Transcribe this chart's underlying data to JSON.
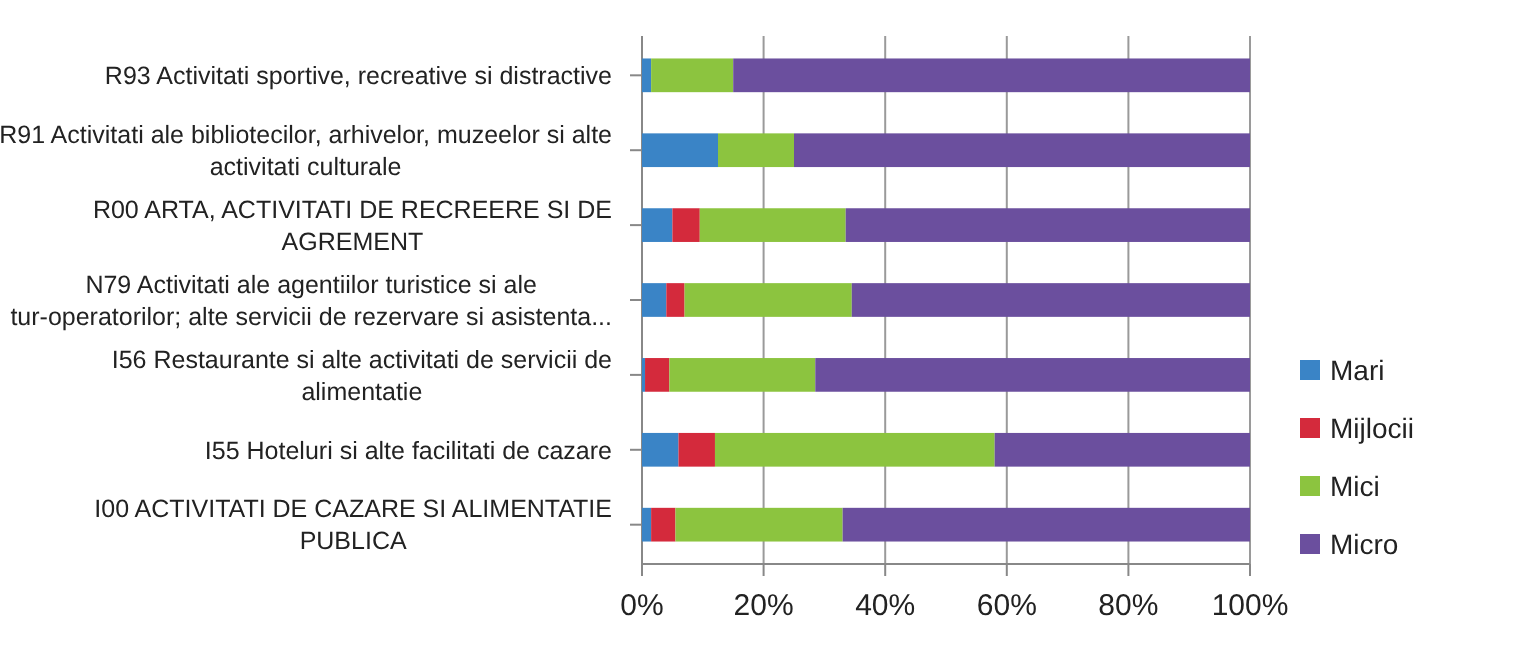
{
  "chart_data": {
    "type": "bar",
    "orientation": "horizontal",
    "stacked": true,
    "categories": [
      "R93 Activitati sportive, recreative si distractive",
      "R91 Activitati ale bibliotecilor, arhivelor, muzeelor si alte activitati culturale",
      "R00 ARTA, ACTIVITATI DE RECREERE SI DE AGREMENT",
      "N79 Activitati ale agentiilor turistice si ale tur-operatorilor; alte servicii de rezervare si asistenta...",
      "I56 Restaurante si alte activitati de servicii de alimentatie",
      "I55 Hoteluri si alte facilitati de cazare",
      "I00 ACTIVITATI DE CAZARE SI ALIMENTATIE PUBLICA"
    ],
    "series": [
      {
        "name": "Mari",
        "color": "#3a84c6",
        "values": [
          1.5,
          12.5,
          5,
          4,
          0.5,
          6,
          1.5
        ]
      },
      {
        "name": "Mijlocii",
        "color": "#d42a3c",
        "values": [
          0,
          0,
          4.5,
          3,
          4,
          6,
          4
        ]
      },
      {
        "name": "Mici",
        "color": "#8cc43f",
        "values": [
          13.5,
          12.5,
          24,
          27.5,
          24,
          46,
          27.5
        ]
      },
      {
        "name": "Micro",
        "color": "#6b4f9e",
        "values": [
          85,
          75,
          66.5,
          65.5,
          71.5,
          42,
          67
        ]
      }
    ],
    "xlim": [
      0,
      100
    ],
    "xticks": [
      {
        "value": 0,
        "label": "0%"
      },
      {
        "value": 20,
        "label": "20%"
      },
      {
        "value": 40,
        "label": "40%"
      },
      {
        "value": 60,
        "label": "60%"
      },
      {
        "value": 80,
        "label": "80%"
      },
      {
        "value": 100,
        "label": "100%"
      }
    ],
    "grid": "x",
    "legend": "right"
  }
}
